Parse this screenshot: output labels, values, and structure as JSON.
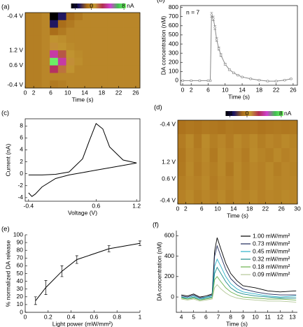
{
  "chart_data": [
    {
      "type": "heatmap",
      "label": "(a)",
      "xlabel": "Time (s)",
      "xlim": [
        0,
        27
      ],
      "xticks": [
        0,
        2,
        6,
        10,
        14,
        18,
        22,
        26
      ],
      "y_labels": [
        "-0.4 V",
        "1.2 V",
        "0.6 V",
        "-0.4 V"
      ],
      "clim": [
        -5,
        8.5
      ],
      "cticks": [
        -4,
        0,
        {
          "value": 8,
          "label": "8 nA"
        }
      ],
      "colormap": [
        "#000000",
        "#1c1464",
        "#a86a18",
        "#c49a34",
        "#b03050",
        "#d040d0",
        "#40c050",
        "#7cff6c"
      ],
      "z": [
        [
          -0.3,
          -0.3,
          0,
          -5,
          -3,
          -1,
          -0.5,
          0,
          0,
          0,
          0,
          0,
          0,
          0
        ],
        [
          -0.3,
          -0.3,
          0,
          -3,
          -1,
          -0.5,
          0,
          0,
          0,
          0,
          0,
          0,
          0,
          0
        ],
        [
          -0.3,
          -0.3,
          0,
          -1,
          -0.5,
          0,
          0,
          0,
          0,
          0,
          0,
          0,
          0,
          0
        ],
        [
          -0.3,
          -0.3,
          0,
          0.5,
          0.3,
          0,
          0,
          0,
          0,
          0,
          0,
          0,
          0,
          0
        ],
        [
          -0.3,
          -0.3,
          0,
          1,
          0.5,
          0.2,
          0,
          0,
          0,
          0,
          0,
          0,
          0,
          0
        ],
        [
          -0.3,
          -0.3,
          0,
          4,
          2,
          0.5,
          0.2,
          0,
          0,
          0,
          0,
          0,
          0,
          0
        ],
        [
          -0.3,
          -0.3,
          0,
          8,
          4,
          1,
          0.3,
          0,
          0,
          0,
          0,
          0,
          0,
          0
        ],
        [
          -0.3,
          -0.3,
          0,
          3,
          1.5,
          0.5,
          0,
          0,
          0,
          0,
          0,
          0,
          0,
          0
        ],
        [
          -0.3,
          -0.3,
          0,
          0,
          0,
          0,
          0,
          0,
          0,
          0,
          0,
          0,
          0,
          0
        ],
        [
          -0.3,
          -0.3,
          0,
          -0.5,
          -0.3,
          0,
          0,
          0,
          0,
          0,
          0,
          0,
          0,
          0
        ]
      ]
    },
    {
      "type": "line",
      "label": "(b)",
      "xlabel": "Time (s)",
      "ylabel": "DA concentration (nM)",
      "annotation": "n = 7",
      "color": "#888888",
      "xlim": [
        -0.5,
        27
      ],
      "xticks": [
        0,
        2,
        6,
        10,
        14,
        18,
        22,
        26
      ],
      "ylim": [
        -50,
        820
      ],
      "yticks": [
        0,
        100,
        200,
        300,
        400,
        500,
        600,
        700,
        800
      ],
      "x": [
        0,
        2,
        4,
        6,
        6.5,
        6.8,
        7.2,
        7.6,
        8,
        8.5,
        9,
        10,
        11,
        12,
        13,
        14,
        16,
        18,
        20,
        22,
        24,
        25.5
      ],
      "values": [
        0,
        0,
        0,
        0,
        0,
        720,
        680,
        580,
        450,
        350,
        280,
        180,
        120,
        85,
        60,
        40,
        20,
        5,
        -5,
        -5,
        5,
        20
      ],
      "errors": [
        5,
        5,
        5,
        5,
        5,
        25,
        25,
        22,
        20,
        18,
        15,
        12,
        10,
        8,
        8,
        6,
        6,
        6,
        6,
        6,
        6,
        6
      ]
    },
    {
      "type": "line",
      "label": "(c)",
      "xlabel": "Voltage (V)",
      "ylabel": "Current (nA)",
      "color": "#000000",
      "xlim": [
        -0.45,
        1.25
      ],
      "xticks": [
        -0.4,
        0.6,
        1.2
      ],
      "ylim": [
        -4.6,
        9.2
      ],
      "yticks": [
        -4,
        -2,
        0,
        2,
        4,
        6,
        8
      ],
      "x": [
        -0.4,
        -0.2,
        0,
        0.2,
        0.4,
        0.5,
        0.6,
        0.7,
        0.8,
        1.0,
        1.2,
        1.0,
        0.8,
        0.6,
        0.4,
        0.2,
        0,
        -0.2,
        -0.3,
        -0.35,
        -0.4
      ],
      "values": [
        -0.2,
        -0.2,
        -0.1,
        0.3,
        2.5,
        5.5,
        8.4,
        7.5,
        4.5,
        2.3,
        1.8,
        1.4,
        1.0,
        0.6,
        0.2,
        -0.2,
        -0.8,
        -2.2,
        -3.4,
        -3.8,
        -3.2
      ]
    },
    {
      "type": "heatmap",
      "label": "(d)",
      "xlabel": "Time (s)",
      "xlim": [
        0,
        30
      ],
      "xticks": [
        0,
        2,
        6,
        10,
        14,
        18,
        22,
        26,
        30
      ],
      "y_labels": [
        "-0.4 V",
        "1.2 V",
        "0.6 V",
        "-0.4 V"
      ],
      "clim": [
        -5,
        8.5
      ],
      "cticks": [
        -4,
        0,
        {
          "value": 8,
          "label": "8 nA"
        }
      ],
      "colormap": [
        "#000000",
        "#1c1464",
        "#a86a18",
        "#c49a34",
        "#b03050",
        "#d040d0",
        "#40c050",
        "#7cff6c"
      ],
      "z": [
        [
          -0.8,
          -0.6,
          -0.7,
          -0.5,
          -0.6,
          -0.7,
          -0.5,
          -0.6,
          -0.6,
          -0.5,
          -0.7,
          -0.6,
          -0.5,
          -0.6,
          -0.5
        ],
        [
          -0.4,
          0.1,
          -0.5,
          0.2,
          -0.3,
          0,
          -0.4,
          0.1,
          -0.2,
          0.1,
          -0.3,
          0,
          -0.2,
          0.1,
          -0.1
        ],
        [
          -0.6,
          0,
          -0.3,
          0.1,
          -0.5,
          0.1,
          -0.2,
          0,
          -0.4,
          0.2,
          -0.1,
          -0.3,
          0.1,
          -0.2,
          0
        ],
        [
          -0.5,
          0.1,
          -0.4,
          0,
          -0.3,
          0.1,
          -0.5,
          0.1,
          -0.3,
          0,
          -0.2,
          0.1,
          -0.3,
          0,
          -0.1
        ],
        [
          -0.3,
          0,
          -0.2,
          0.1,
          -0.4,
          0,
          -0.2,
          0.1,
          -0.3,
          0,
          -0.2,
          0.1,
          -0.1,
          0,
          0
        ],
        [
          -0.2,
          0.1,
          -0.3,
          0,
          -0.2,
          0.1,
          -0.3,
          0,
          -0.1,
          0.1,
          -0.2,
          0,
          -0.1,
          0.1,
          0
        ]
      ]
    },
    {
      "type": "line",
      "label": "(e)",
      "xlabel": "Light power (mW/mm²)",
      "ylabel": "% normalized DA release",
      "color": "#000000",
      "xlim": [
        0,
        1
      ],
      "xticks": [
        0,
        0.2,
        0.4,
        0.6,
        0.8,
        1
      ],
      "ylim": [
        0,
        100
      ],
      "yticks": [
        0,
        10,
        20,
        30,
        40,
        50,
        60,
        70,
        80,
        90,
        100
      ],
      "x": [
        0.09,
        0.18,
        0.32,
        0.45,
        0.73,
        1.0
      ],
      "values": [
        15,
        32,
        53,
        68,
        82,
        89
      ],
      "errors": [
        5,
        9,
        7,
        5,
        4,
        3
      ]
    },
    {
      "type": "line",
      "label": "(f)",
      "xlabel": "Time (s)",
      "ylabel": "DA concentration (nM)",
      "xlim": [
        3.6,
        13.4
      ],
      "xticks": [
        4,
        5,
        6,
        7,
        8,
        9,
        10,
        11,
        12,
        13
      ],
      "ylim": [
        -150,
        650
      ],
      "yticks": [
        0,
        200,
        400,
        600
      ],
      "x": [
        4,
        4.5,
        5,
        5.5,
        6,
        6.5,
        6.7,
        6.9,
        7.2,
        7.6,
        8,
        8.5,
        9,
        10,
        11,
        12,
        13.3
      ],
      "series": [
        {
          "name": "1.00 mW/mm²",
          "color": "#000000",
          "values": [
            20,
            10,
            30,
            0,
            10,
            30,
            450,
            580,
            470,
            330,
            230,
            160,
            110,
            90,
            60,
            50,
            60
          ]
        },
        {
          "name": "0.73 mW/mm²",
          "color": "#1f2a5a",
          "values": [
            10,
            0,
            20,
            -10,
            0,
            20,
            400,
            500,
            400,
            270,
            180,
            120,
            80,
            50,
            30,
            20,
            20
          ]
        },
        {
          "name": "0.45 mW/mm²",
          "color": "#2cb1c9",
          "values": [
            0,
            -10,
            10,
            -20,
            0,
            10,
            300,
            370,
            300,
            200,
            130,
            80,
            50,
            30,
            10,
            0,
            10
          ]
        },
        {
          "name": "0.32 mW/mm²",
          "color": "#1a8a8a",
          "values": [
            0,
            -20,
            0,
            -30,
            -10,
            0,
            230,
            290,
            230,
            150,
            90,
            50,
            30,
            10,
            0,
            -10,
            -10
          ]
        },
        {
          "name": "0.18 mW/mm²",
          "color": "#6ab04c",
          "values": [
            -10,
            -20,
            -10,
            -30,
            -20,
            -10,
            170,
            200,
            150,
            90,
            50,
            20,
            0,
            -10,
            -20,
            -20,
            -30
          ]
        },
        {
          "name": "0.09 mW/mm²",
          "color": "#b4c898",
          "values": [
            -20,
            -30,
            -20,
            -40,
            -30,
            -20,
            90,
            120,
            80,
            40,
            10,
            -10,
            -20,
            -30,
            -40,
            -40,
            -50
          ]
        }
      ]
    }
  ]
}
